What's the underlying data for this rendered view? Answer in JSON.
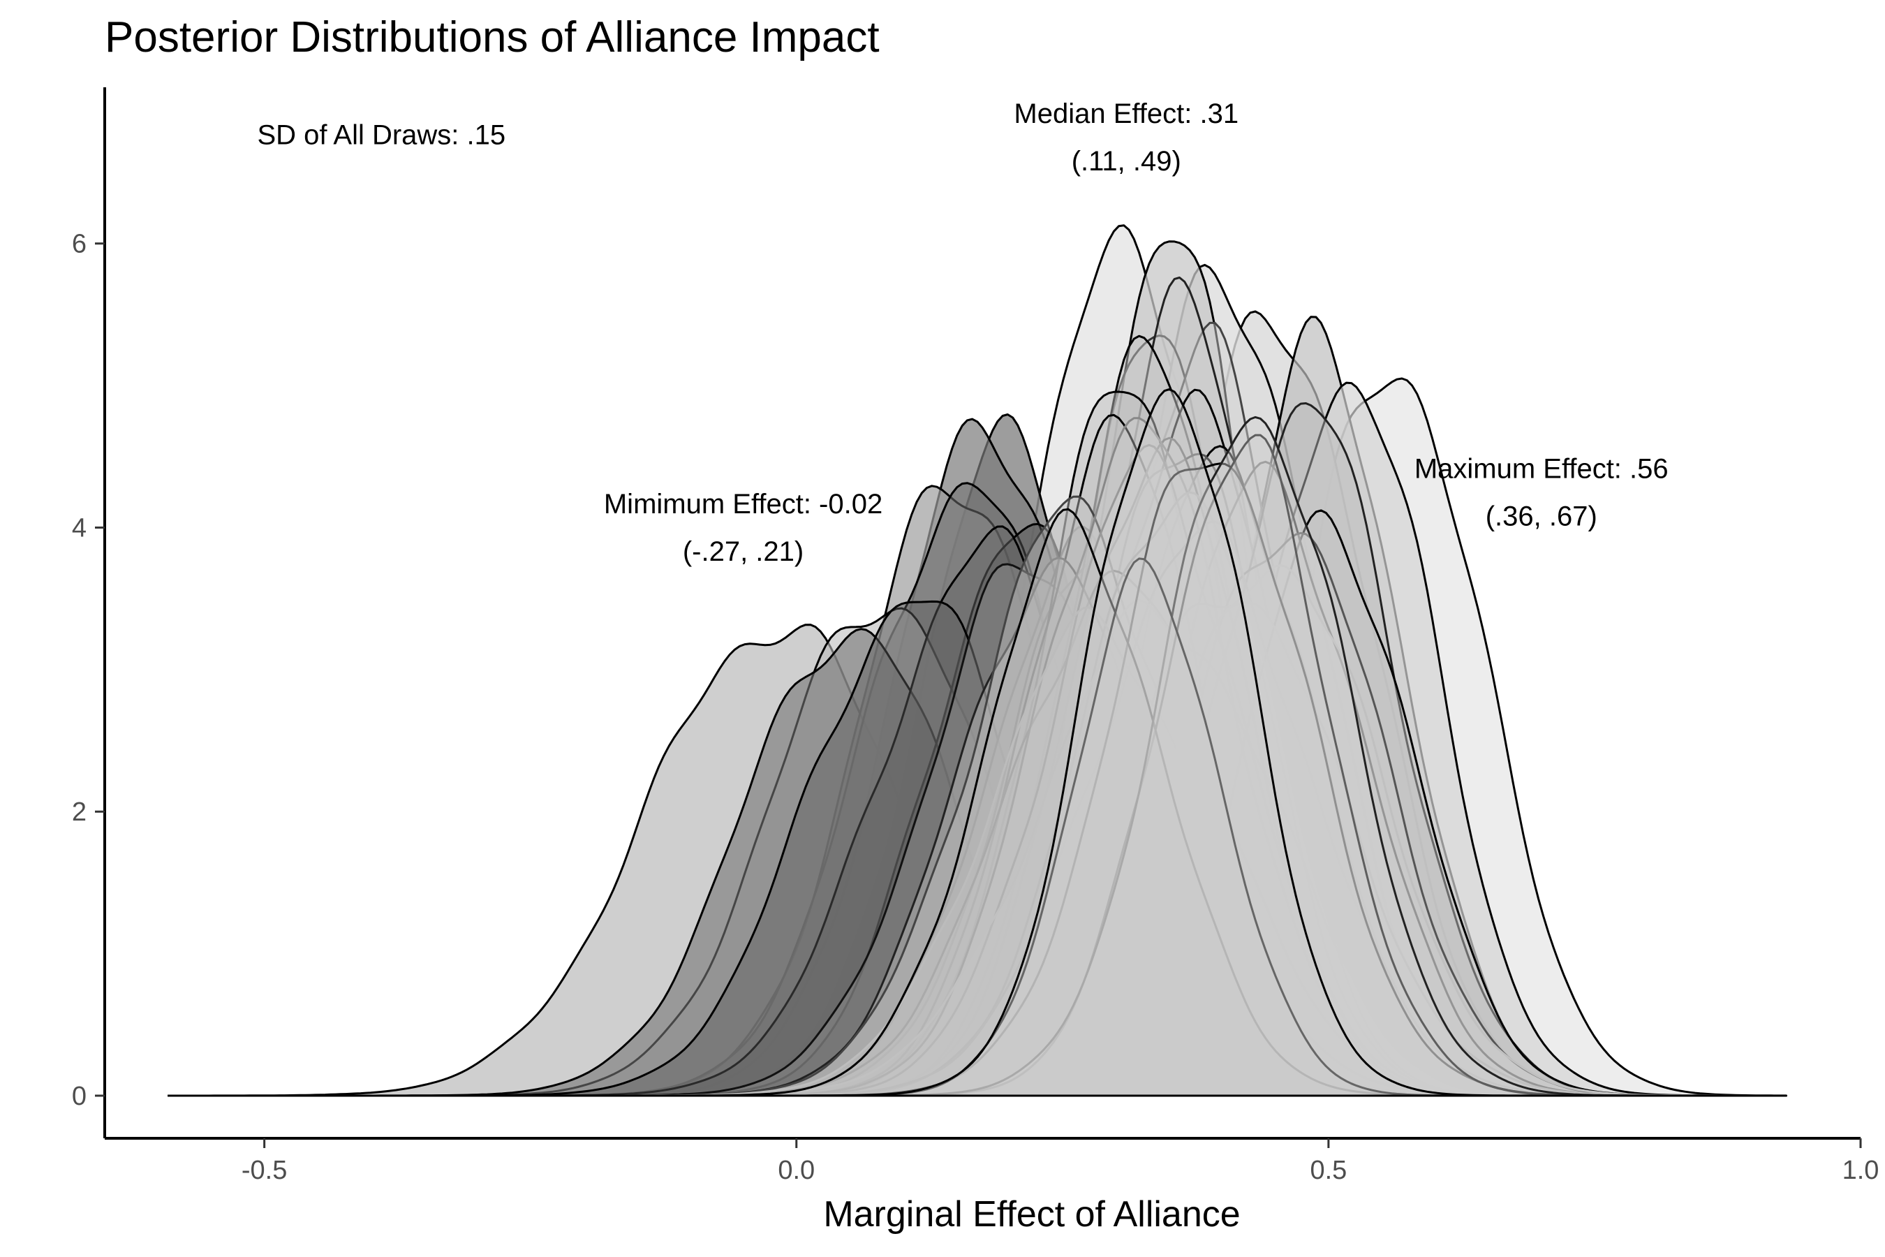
{
  "chart_data": {
    "type": "area",
    "title": "Posterior Distributions of Alliance Impact",
    "xlabel": "Marginal Effect of Alliance",
    "ylabel": "",
    "xlim": [
      -0.65,
      1.0
    ],
    "ylim": [
      -0.3,
      7.1
    ],
    "x_ticks": [
      -0.5,
      0.0,
      0.5,
      1.0
    ],
    "x_tick_labels": [
      "-0.5",
      "0.0",
      "0.5",
      "1.0"
    ],
    "y_ticks": [
      0,
      2,
      4,
      6
    ],
    "y_tick_labels": [
      "0",
      "2",
      "4",
      "6"
    ],
    "grid": false,
    "legend": "none",
    "x_support": [
      -0.59,
      0.93
    ],
    "annotations": [
      {
        "id": "sd",
        "lines": [
          "SD of All Draws: .15"
        ],
        "x": -0.39,
        "y": 6.7
      },
      {
        "id": "median",
        "lines": [
          "Median Effect: .31",
          "(.11, .49)"
        ],
        "x": 0.31,
        "y": 6.85
      },
      {
        "id": "minimum",
        "lines": [
          "Mimimum Effect: -0.02",
          "(-.27, .21)"
        ],
        "x": -0.05,
        "y": 4.1
      },
      {
        "id": "maximum",
        "lines": [
          "Maximum Effect: .56",
          "(.36, .67)"
        ],
        "x": 0.7,
        "y": 4.35
      }
    ],
    "series": [
      {
        "mu": -0.02,
        "sd": 0.12,
        "peak": 3.33,
        "fill": "#cccccc",
        "fill_opacity": 0.95,
        "stroke": "#000000"
      },
      {
        "mu": 0.56,
        "sd": 0.085,
        "peak": 5.2,
        "fill": "#ebebeb",
        "fill_opacity": 0.9,
        "stroke": "#000000"
      },
      {
        "mu": 0.31,
        "sd": 0.1,
        "peak": 5.9,
        "fill": "#e6e6e6",
        "fill_opacity": 0.85,
        "stroke": "#000000"
      },
      {
        "mu": 0.45,
        "sd": 0.09,
        "peak": 5.5,
        "fill": "#d9d9d9",
        "fill_opacity": 0.8,
        "stroke": "#000000"
      },
      {
        "mu": 0.4,
        "sd": 0.09,
        "peak": 5.75,
        "fill": "#dddddd",
        "fill_opacity": 0.8,
        "stroke": "#000000"
      },
      {
        "mu": 0.49,
        "sd": 0.08,
        "peak": 5.22,
        "fill": "#bfbfbf",
        "fill_opacity": 0.7,
        "stroke": "#000000"
      },
      {
        "mu": 0.52,
        "sd": 0.08,
        "peak": 5.1,
        "fill": "#d4d4d4",
        "fill_opacity": 0.7,
        "stroke": "#000000"
      },
      {
        "mu": 0.35,
        "sd": 0.075,
        "peak": 6.07,
        "fill": "#c8c8c8",
        "fill_opacity": 0.75,
        "stroke": "#000000"
      },
      {
        "mu": 0.2,
        "sd": 0.085,
        "peak": 4.6,
        "fill": "#8c8c8c",
        "fill_opacity": 0.85,
        "stroke": "#000000"
      },
      {
        "mu": 0.18,
        "sd": 0.09,
        "peak": 4.7,
        "fill": "#7a7a7a",
        "fill_opacity": 0.7,
        "stroke": "#000000"
      },
      {
        "mu": 0.15,
        "sd": 0.09,
        "peak": 4.38,
        "fill": "#9e9e9e",
        "fill_opacity": 0.7,
        "stroke": "#000000"
      },
      {
        "mu": 0.16,
        "sd": 0.095,
        "peak": 4.3,
        "fill": "#6e6e6e",
        "fill_opacity": 0.55,
        "stroke": "#000000"
      },
      {
        "mu": 0.08,
        "sd": 0.1,
        "peak": 3.52,
        "fill": "#bdbdbd",
        "fill_opacity": 0.6,
        "stroke": "#000000"
      },
      {
        "mu": 0.05,
        "sd": 0.1,
        "peak": 3.3,
        "fill": "#757575",
        "fill_opacity": 0.6,
        "stroke": "#000000"
      },
      {
        "mu": 0.21,
        "sd": 0.085,
        "peak": 3.97,
        "fill": "#555555",
        "fill_opacity": 0.5,
        "stroke": "#000000"
      },
      {
        "mu": 0.18,
        "sd": 0.1,
        "peak": 3.85,
        "fill": "#666666",
        "fill_opacity": 0.5,
        "stroke": "#000000"
      },
      {
        "mu": 0.11,
        "sd": 0.1,
        "peak": 3.5,
        "fill": "#5e5e5e",
        "fill_opacity": 0.45,
        "stroke": "#000000"
      },
      {
        "mu": 0.27,
        "sd": 0.09,
        "peak": 3.8,
        "fill": "#a8a8a8",
        "fill_opacity": 0.5,
        "stroke": "#000000"
      },
      {
        "mu": 0.29,
        "sd": 0.09,
        "peak": 3.9,
        "fill": "#b5b5b5",
        "fill_opacity": 0.5,
        "stroke": "#000000"
      },
      {
        "mu": 0.22,
        "sd": 0.095,
        "peak": 3.75,
        "fill": "#8f8f8f",
        "fill_opacity": 0.45,
        "stroke": "#111111"
      },
      {
        "mu": 0.34,
        "sd": 0.075,
        "peak": 5.4,
        "fill": "#cfcfcf",
        "fill_opacity": 0.55,
        "stroke": "#333333"
      },
      {
        "mu": 0.38,
        "sd": 0.08,
        "peak": 5.3,
        "fill": "#d1d1d1",
        "fill_opacity": 0.5,
        "stroke": "#444444"
      },
      {
        "mu": 0.36,
        "sd": 0.08,
        "peak": 5.5,
        "fill": "#c9c9c9",
        "fill_opacity": 0.5,
        "stroke": "#222222"
      },
      {
        "mu": 0.33,
        "sd": 0.08,
        "peak": 5.15,
        "fill": "#c4c4c4",
        "fill_opacity": 0.5,
        "stroke": "#000000"
      },
      {
        "mu": 0.31,
        "sd": 0.085,
        "peak": 4.95,
        "fill": "#bcbcbc",
        "fill_opacity": 0.5,
        "stroke": "#000000"
      },
      {
        "mu": 0.37,
        "sd": 0.085,
        "peak": 4.8,
        "fill": "#c6c6c6",
        "fill_opacity": 0.5,
        "stroke": "#000000"
      },
      {
        "mu": 0.4,
        "sd": 0.085,
        "peak": 4.5,
        "fill": "#cccccc",
        "fill_opacity": 0.5,
        "stroke": "#000000"
      },
      {
        "mu": 0.3,
        "sd": 0.085,
        "peak": 4.6,
        "fill": "#c0c0c0",
        "fill_opacity": 0.5,
        "stroke": "#000000"
      },
      {
        "mu": 0.36,
        "sd": 0.08,
        "peak": 4.7,
        "fill": "#c8c8c8",
        "fill_opacity": 0.5,
        "stroke": "#555555"
      },
      {
        "mu": 0.34,
        "sd": 0.085,
        "peak": 4.55,
        "fill": "#cccccc",
        "fill_opacity": 0.45,
        "stroke": "#666666"
      },
      {
        "mu": 0.48,
        "sd": 0.085,
        "peak": 4.8,
        "fill": "#bbbbbb",
        "fill_opacity": 0.5,
        "stroke": "#222222"
      },
      {
        "mu": 0.5,
        "sd": 0.08,
        "peak": 4.0,
        "fill": "#c4c4c4",
        "fill_opacity": 0.45,
        "stroke": "#000000"
      },
      {
        "mu": 0.44,
        "sd": 0.09,
        "peak": 4.3,
        "fill": "#c8c8c8",
        "fill_opacity": 0.45,
        "stroke": "#333333"
      },
      {
        "mu": 0.46,
        "sd": 0.09,
        "peak": 4.05,
        "fill": "#cccccc",
        "fill_opacity": 0.45,
        "stroke": "#555555"
      },
      {
        "mu": 0.3,
        "sd": 0.1,
        "peak": 3.6,
        "fill": "#c6c6c6",
        "fill_opacity": 0.45,
        "stroke": "#000000"
      },
      {
        "mu": 0.24,
        "sd": 0.09,
        "peak": 3.7,
        "fill": "#bbbbbb",
        "fill_opacity": 0.45,
        "stroke": "#222222"
      },
      {
        "mu": 0.26,
        "sd": 0.095,
        "peak": 4.1,
        "fill": "#c2c2c2",
        "fill_opacity": 0.45,
        "stroke": "#444444"
      },
      {
        "mu": 0.32,
        "sd": 0.09,
        "peak": 4.7,
        "fill": "#cdcdcd",
        "fill_opacity": 0.4,
        "stroke": "#888888"
      },
      {
        "mu": 0.33,
        "sd": 0.09,
        "peak": 4.4,
        "fill": "#cfcfcf",
        "fill_opacity": 0.4,
        "stroke": "#999999"
      },
      {
        "mu": 0.36,
        "sd": 0.09,
        "peak": 4.3,
        "fill": "#d0d0d0",
        "fill_opacity": 0.4,
        "stroke": "#aaaaaa"
      },
      {
        "mu": 0.38,
        "sd": 0.1,
        "peak": 3.9,
        "fill": "#cccccc",
        "fill_opacity": 0.4,
        "stroke": "#b0b0b0"
      },
      {
        "mu": 0.41,
        "sd": 0.1,
        "peak": 3.6,
        "fill": "#cccccc",
        "fill_opacity": 0.4,
        "stroke": "#bbbbbb"
      },
      {
        "mu": 0.34,
        "sd": 0.11,
        "peak": 3.4,
        "fill": "#cccccc",
        "fill_opacity": 0.35,
        "stroke": "#c4c4c4"
      },
      {
        "mu": 0.28,
        "sd": 0.1,
        "peak": 3.3,
        "fill": "#cccccc",
        "fill_opacity": 0.35,
        "stroke": "#bdbdbd"
      },
      {
        "mu": 0.45,
        "sd": 0.095,
        "peak": 3.8,
        "fill": "#cccccc",
        "fill_opacity": 0.35,
        "stroke": "#c0c0c0"
      },
      {
        "mu": 0.39,
        "sd": 0.09,
        "peak": 4.6,
        "fill": "#cccccc",
        "fill_opacity": 0.5,
        "stroke": "#000000"
      },
      {
        "mu": 0.42,
        "sd": 0.08,
        "peak": 4.55,
        "fill": "#cccccc",
        "fill_opacity": 0.45,
        "stroke": "#000000"
      },
      {
        "mu": 0.26,
        "sd": 0.085,
        "peak": 3.95,
        "fill": "#bbbbbb",
        "fill_opacity": 0.45,
        "stroke": "#000000"
      },
      {
        "mu": 0.43,
        "sd": 0.085,
        "peak": 4.85,
        "fill": "#d0d0d0",
        "fill_opacity": 0.45,
        "stroke": "#222222"
      },
      {
        "mu": 0.33,
        "sd": 0.07,
        "peak": 3.62,
        "fill": "#cccccc",
        "fill_opacity": 0.6,
        "stroke": "#000000"
      },
      {
        "mu": 0.35,
        "sd": 0.075,
        "peak": 5.05,
        "fill": "#cccccc",
        "fill_opacity": 0.5,
        "stroke": "#000000"
      }
    ]
  }
}
